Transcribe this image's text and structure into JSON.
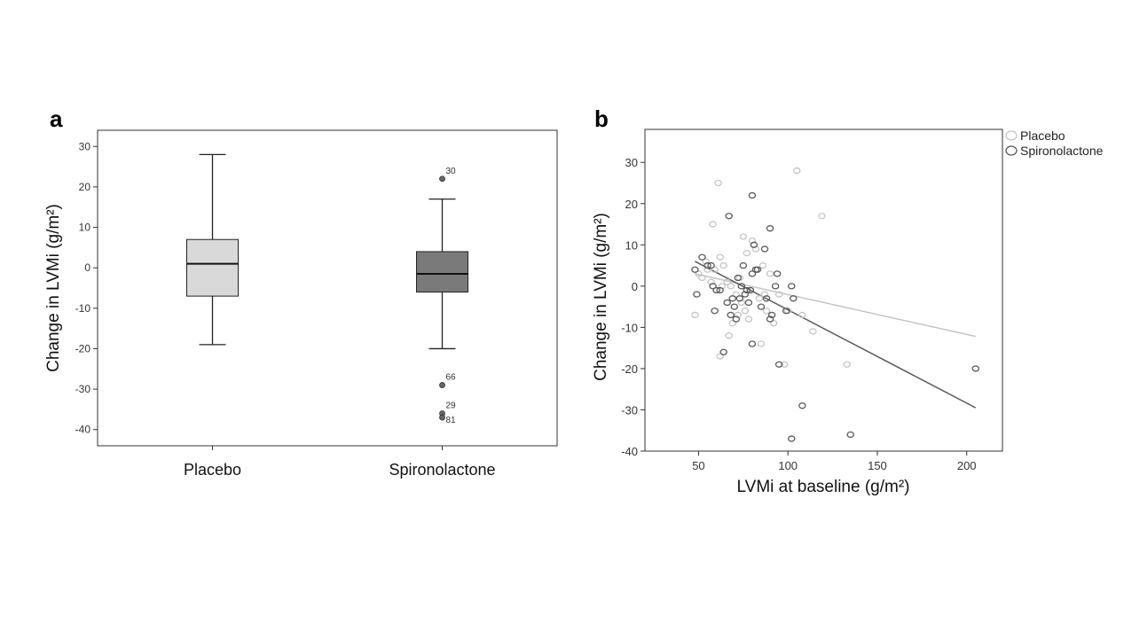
{
  "chart_data": [
    {
      "type": "box",
      "panel_label": "a",
      "ylabel": "Change in LVMi (g/m²)",
      "ylim": [
        -44,
        34
      ],
      "yticks": [
        30,
        20,
        10,
        0,
        -10,
        -20,
        -30,
        -40
      ],
      "categories": [
        "Placebo",
        "Spironolactone"
      ],
      "boxes": [
        {
          "category": "Placebo",
          "whisker_low": -19,
          "q1": -7,
          "median": 1,
          "q3": 7,
          "whisker_high": 28,
          "color": "#d9d9d9",
          "outliers": []
        },
        {
          "category": "Spironolactone",
          "whisker_low": -20,
          "q1": -6,
          "median": -1.5,
          "q3": 4,
          "whisker_high": 17,
          "color": "#7a7a7a",
          "outliers": [
            {
              "value": 22,
              "label": "30"
            },
            {
              "value": -29,
              "label": "66"
            },
            {
              "value": -36,
              "label": "29"
            },
            {
              "value": -37,
              "label": "81"
            }
          ]
        }
      ]
    },
    {
      "type": "scatter",
      "panel_label": "b",
      "xlabel": "LVMi at baseline (g/m²)",
      "ylabel": "Change in LVMi (g/m²)",
      "xlim": [
        20,
        220
      ],
      "ylim": [
        -40,
        38
      ],
      "xticks": [
        50,
        100,
        150,
        200
      ],
      "yticks": [
        30,
        20,
        10,
        0,
        -10,
        -20,
        -30,
        -40
      ],
      "legend": {
        "position": "top-right",
        "entries": [
          "Placebo",
          "Spironolactone"
        ]
      },
      "series": [
        {
          "name": "Placebo",
          "color": "#c4c4c4",
          "points": [
            [
              61,
              25
            ],
            [
              58,
              15
            ],
            [
              62,
              7
            ],
            [
              64,
              5
            ],
            [
              55,
              4
            ],
            [
              50,
              3
            ],
            [
              52,
              2
            ],
            [
              57,
              1
            ],
            [
              63,
              0
            ],
            [
              60,
              -1
            ],
            [
              48,
              -7
            ],
            [
              66,
              1
            ],
            [
              68,
              0
            ],
            [
              71,
              -2
            ],
            [
              74,
              -4
            ],
            [
              76,
              -6
            ],
            [
              78,
              -8
            ],
            [
              67,
              -12
            ],
            [
              62,
              -17
            ],
            [
              75,
              12
            ],
            [
              80,
              11
            ],
            [
              82,
              9
            ],
            [
              77,
              8
            ],
            [
              86,
              5
            ],
            [
              90,
              3
            ],
            [
              84,
              -3
            ],
            [
              88,
              -6
            ],
            [
              92,
              -9
            ],
            [
              95,
              -2
            ],
            [
              100,
              -6
            ],
            [
              108,
              -7
            ],
            [
              114,
              -11
            ],
            [
              98,
              -19
            ],
            [
              105,
              28
            ],
            [
              119,
              17
            ],
            [
              133,
              -19
            ],
            [
              72,
              -7
            ],
            [
              79,
              -1
            ],
            [
              85,
              -14
            ],
            [
              69,
              -9
            ],
            [
              73,
              2
            ],
            [
              87,
              -2
            ],
            [
              54,
              6
            ],
            [
              59,
              4
            ]
          ],
          "fit": {
            "x": [
              48,
              205
            ],
            "y": [
              3,
              -12.2
            ]
          }
        },
        {
          "name": "Spironolactone",
          "color": "#5a5a5a",
          "points": [
            [
              52,
              7
            ],
            [
              55,
              5
            ],
            [
              48,
              4
            ],
            [
              49,
              -2
            ],
            [
              58,
              0
            ],
            [
              60,
              -1
            ],
            [
              59,
              -6
            ],
            [
              67,
              17
            ],
            [
              66,
              -4
            ],
            [
              68,
              -7
            ],
            [
              70,
              -5
            ],
            [
              72,
              2
            ],
            [
              73,
              -3
            ],
            [
              75,
              5
            ],
            [
              74,
              0
            ],
            [
              76,
              -2
            ],
            [
              78,
              -4
            ],
            [
              79,
              -1
            ],
            [
              80,
              3
            ],
            [
              81,
              10
            ],
            [
              80,
              22
            ],
            [
              82,
              4
            ],
            [
              83,
              4
            ],
            [
              87,
              9
            ],
            [
              88,
              -3
            ],
            [
              90,
              -8
            ],
            [
              91,
              -7
            ],
            [
              90,
              14
            ],
            [
              93,
              0
            ],
            [
              94,
              3
            ],
            [
              95,
              -19
            ],
            [
              99,
              -6
            ],
            [
              102,
              0
            ],
            [
              103,
              -3
            ],
            [
              108,
              -29
            ],
            [
              102,
              -37
            ],
            [
              135,
              -36
            ],
            [
              205,
              -20
            ],
            [
              64,
              -16
            ],
            [
              71,
              -8
            ],
            [
              85,
              -5
            ],
            [
              77,
              -1
            ],
            [
              80,
              -14
            ],
            [
              62,
              -1
            ],
            [
              69,
              -3
            ],
            [
              57,
              5
            ]
          ],
          "fit": {
            "x": [
              48,
              205
            ],
            "y": [
              6,
              -29.5
            ]
          }
        }
      ]
    }
  ]
}
